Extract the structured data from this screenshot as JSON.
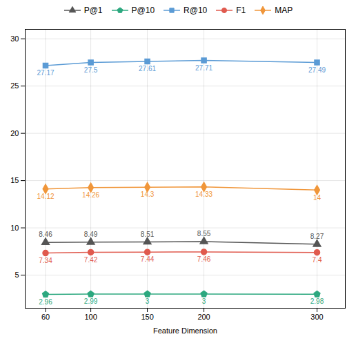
{
  "chart_data": {
    "type": "line",
    "xlabel": "Feature Dimension",
    "x": [
      60,
      100,
      150,
      200,
      300
    ],
    "series": [
      {
        "name": "P@1",
        "color": "#555555",
        "marker": "triangle",
        "values": [
          8.46,
          8.49,
          8.51,
          8.55,
          8.27
        ]
      },
      {
        "name": "P@10",
        "color": "#2ca87f",
        "marker": "pentagon",
        "values": [
          2.96,
          2.99,
          3,
          3,
          2.98
        ]
      },
      {
        "name": "R@10",
        "color": "#5b9bd5",
        "marker": "square",
        "values": [
          27.17,
          27.5,
          27.61,
          27.71,
          27.49
        ]
      },
      {
        "name": "F1",
        "color": "#e05a4e",
        "marker": "circle",
        "values": [
          7.34,
          7.42,
          7.44,
          7.46,
          7.4
        ]
      },
      {
        "name": "MAP",
        "color": "#f0963a",
        "marker": "diamond",
        "values": [
          14.12,
          14.26,
          14.3,
          14.33,
          14
        ]
      }
    ],
    "xlim": [
      42,
      325
    ],
    "xticks": [
      60,
      100,
      150,
      200,
      300
    ],
    "ylim": [
      1.5,
      31
    ],
    "yticks": [
      5,
      10,
      15,
      20,
      25,
      30
    ],
    "grid": true,
    "legend": "top",
    "data_labels": true
  }
}
